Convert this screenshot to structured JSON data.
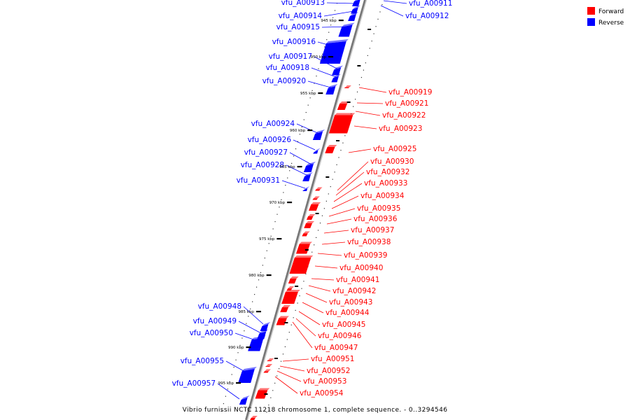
{
  "caption": "Vibrio furnissii NCTC 11218 chromosome 1, complete sequence. - 0..3294546",
  "legend": [
    {
      "label": "Forward",
      "color": "#ff0000"
    },
    {
      "label": "Reverse",
      "color": "#0000ff"
    }
  ],
  "colors": {
    "forward": "#ff0000",
    "reverse": "#0000ff",
    "backbone": "#888888"
  },
  "kbp_ticks": [
    "945 kbp",
    "950 kbp",
    "955 kbp",
    "960 kbp",
    "965 kbp",
    "970 kbp",
    "975 kbp",
    "980 kbp",
    "985 kbp",
    "990 kbp",
    "995 kbp"
  ],
  "genes_reverse": [
    "vfu_A00911",
    "vfu_A00912",
    "vfu_A00913",
    "vfu_A00914",
    "vfu_A00915",
    "vfu_A00916",
    "vfu_A00917",
    "vfu_A00918",
    "vfu_A00920",
    "vfu_A00924",
    "vfu_A00926",
    "vfu_A00927",
    "vfu_A00928",
    "vfu_A00931",
    "vfu_A00948",
    "vfu_A00949",
    "vfu_A00950",
    "vfu_A00955",
    "vfu_A00957"
  ],
  "genes_forward": [
    "vfu_A00919",
    "vfu_A00921",
    "vfu_A00922",
    "vfu_A00923",
    "vfu_A00925",
    "vfu_A00930",
    "vfu_A00932",
    "vfu_A00933",
    "vfu_A00934",
    "vfu_A00935",
    "vfu_A00936",
    "vfu_A00937",
    "vfu_A00938",
    "vfu_A00939",
    "vfu_A00940",
    "vfu_A00941",
    "vfu_A00942",
    "vfu_A00943",
    "vfu_A00944",
    "vfu_A00945",
    "vfu_A00946",
    "vfu_A00947",
    "vfu_A00951",
    "vfu_A00952",
    "vfu_A00953",
    "vfu_A00954"
  ]
}
